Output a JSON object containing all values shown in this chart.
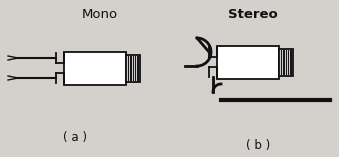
{
  "bg_color": "#d4d0cb",
  "line_color": "#111111",
  "title_mono": "Mono",
  "title_stereo": "Stereo",
  "label_a": "( a )",
  "label_b": "( b )",
  "title_fontsize": 9.5,
  "label_fontsize": 8.5,
  "fig_width": 3.39,
  "fig_height": 1.57,
  "dpi": 100
}
